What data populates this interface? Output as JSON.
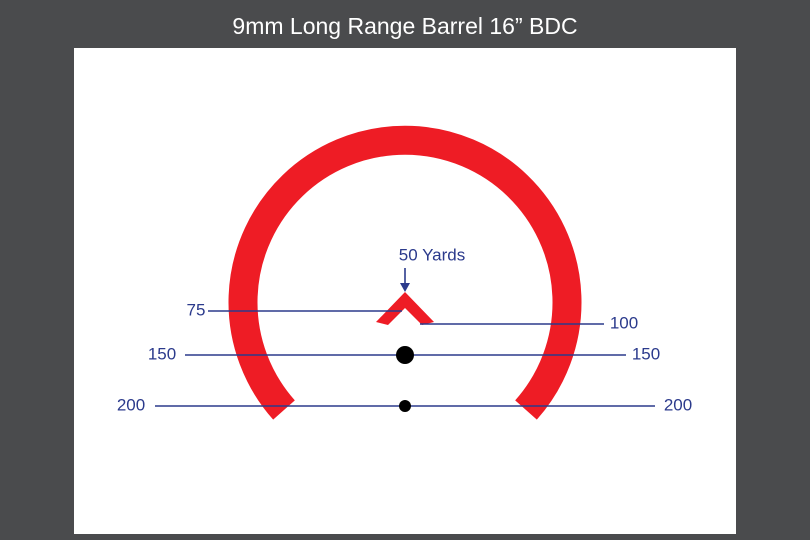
{
  "header": {
    "title": "9mm Long Range Barrel 16” BDC"
  },
  "reticle": {
    "center_label": "50 Yards",
    "left_labels": [
      "75",
      "150",
      "200"
    ],
    "right_labels": [
      "100",
      "150",
      "200"
    ]
  }
}
